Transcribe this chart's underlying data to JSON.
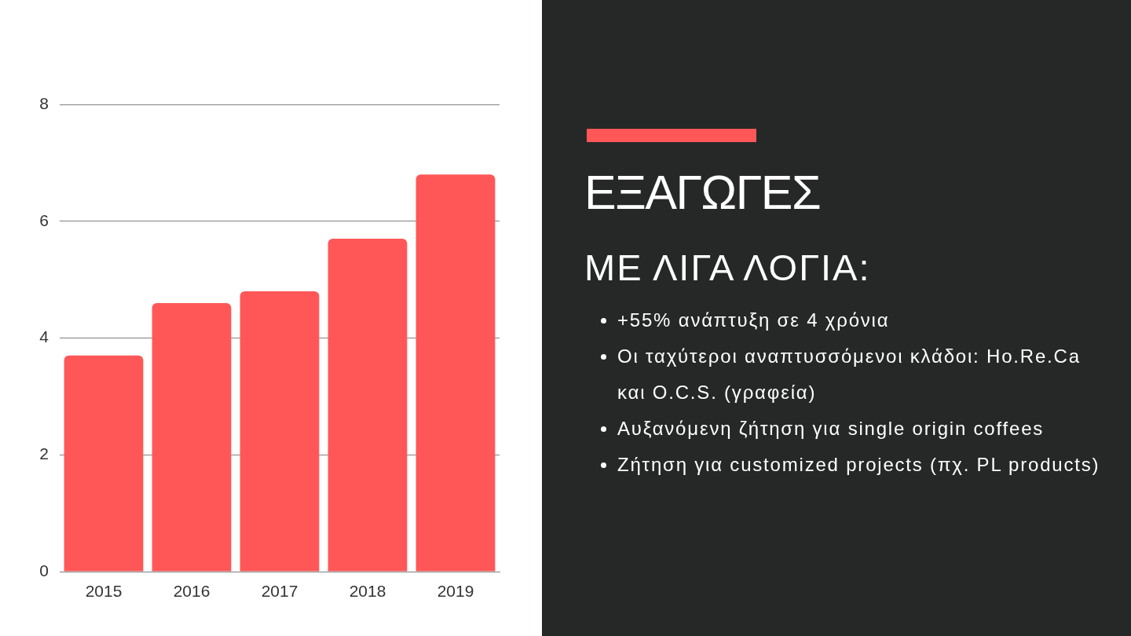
{
  "chart_data": {
    "type": "bar",
    "title": "ΕΞΑΓΩΓΕΣ",
    "subtitle": "ΜΕ ΛΙΓΑ ΛΟΓΙΑ:",
    "annotations": [
      "+55% ανάπτυξη σε 4 χρόνια",
      "Οι ταχύτεροι αναπτυσσόμενοι κλάδοι: Ho.Re.Ca και O.C.S. (γραφεία)",
      "Αυξανόμενη ζήτηση για single origin coffees",
      "Ζήτηση για customized projects (πχ. PL products)"
    ],
    "categories": [
      "2015",
      "2016",
      "2017",
      "2018",
      "2019"
    ],
    "values": [
      3.7,
      4.6,
      4.8,
      5.7,
      6.8
    ],
    "color": "#ff5757",
    "ylim": [
      0,
      8
    ],
    "yticks": [
      0,
      2,
      4,
      6,
      8
    ],
    "grid": "y"
  }
}
